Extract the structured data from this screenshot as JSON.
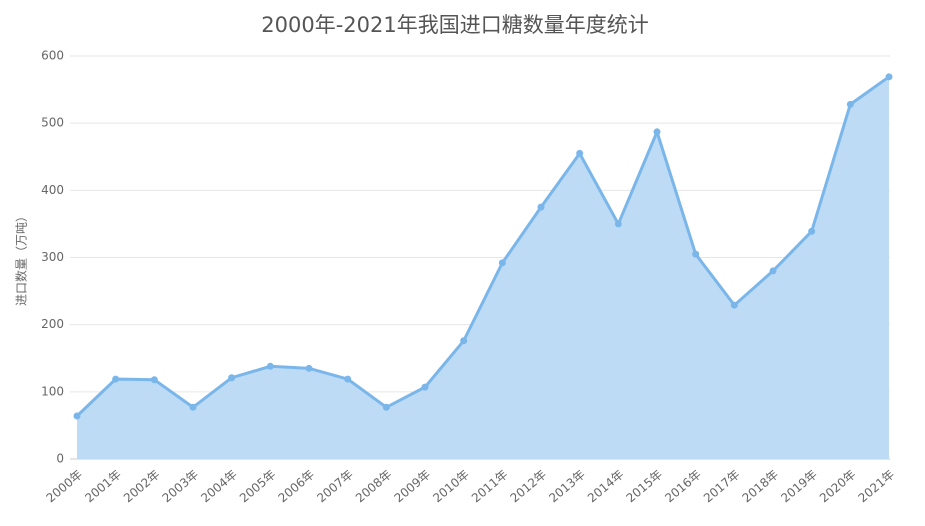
{
  "chart_data": {
    "type": "area",
    "title": "2000年-2021年我国进口糖数量年度统计",
    "y_label": "进口数量（万吨）",
    "categories": [
      "2000年",
      "2001年",
      "2002年",
      "2003年",
      "2004年",
      "2005年",
      "2006年",
      "2007年",
      "2008年",
      "2009年",
      "2010年",
      "2011年",
      "2012年",
      "2013年",
      "2014年",
      "2015年",
      "2016年",
      "2017年",
      "2018年",
      "2019年",
      "2020年",
      "2021年"
    ],
    "values": [
      64,
      119,
      118,
      77,
      121,
      138,
      135,
      119,
      77,
      107,
      176,
      292,
      375,
      455,
      350,
      487,
      305,
      229,
      280,
      339,
      528,
      569
    ],
    "color": "#7ab6ea",
    "fill": "#bedbf5",
    "ylim": [
      0,
      600
    ],
    "yticks": [
      0,
      100,
      200,
      300,
      400,
      500,
      600
    ],
    "grid": true
  }
}
